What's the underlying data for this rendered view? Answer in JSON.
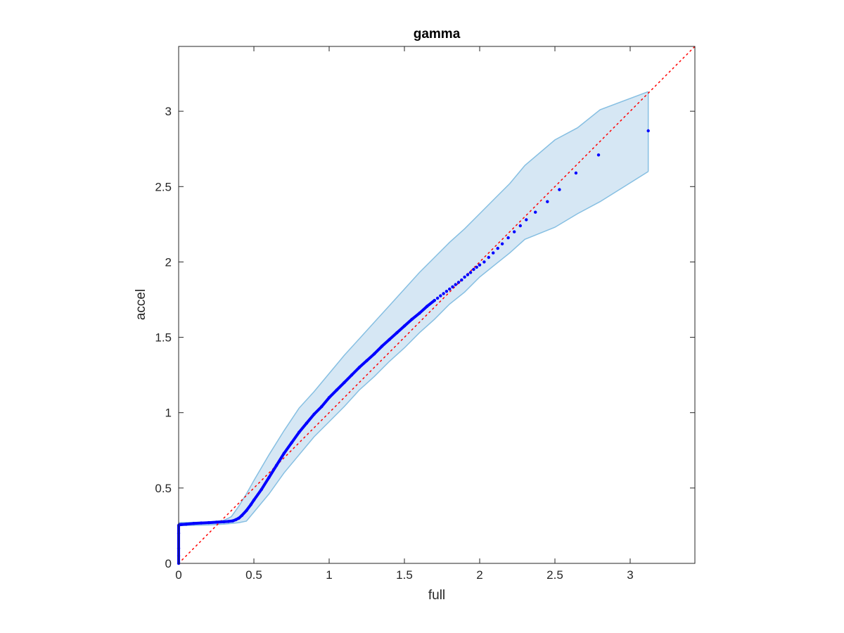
{
  "chart_data": {
    "type": "scatter",
    "title": "gamma",
    "xlabel": "full",
    "ylabel": "accel",
    "xlim": [
      0,
      3.43
    ],
    "ylim": [
      0,
      3.43
    ],
    "grid": false,
    "xticks": [
      0,
      0.5,
      1,
      1.5,
      2,
      2.5,
      3
    ],
    "yticks": [
      0,
      0.5,
      1,
      1.5,
      2,
      2.5,
      3
    ],
    "xtick_labels": [
      "0",
      "0.5",
      "1",
      "1.5",
      "2",
      "2.5",
      "3"
    ],
    "ytick_labels": [
      "0",
      "0.5",
      "1",
      "1.5",
      "2",
      "2.5",
      "3"
    ],
    "colors": {
      "points": "#0000ff",
      "band_fill": "#d6e7f4",
      "band_edge": "#86bfe2",
      "reference": "#ff0000",
      "axes": "#262626"
    },
    "reference_line": {
      "style": "dotted",
      "from": [
        0,
        0
      ],
      "to": [
        3.43,
        3.43
      ]
    },
    "confidence_band": {
      "x": [
        0,
        0.2,
        0.3,
        0.35,
        0.4,
        0.45,
        0.5,
        0.6,
        0.7,
        0.8,
        0.9,
        1.0,
        1.1,
        1.2,
        1.3,
        1.4,
        1.5,
        1.6,
        1.7,
        1.8,
        1.9,
        2.0,
        2.1,
        2.2,
        2.3,
        2.5,
        2.65,
        2.8,
        3.12
      ],
      "upper": [
        0.27,
        0.275,
        0.285,
        0.31,
        0.38,
        0.46,
        0.55,
        0.72,
        0.88,
        1.03,
        1.14,
        1.26,
        1.38,
        1.49,
        1.6,
        1.71,
        1.82,
        1.93,
        2.03,
        2.13,
        2.22,
        2.32,
        2.42,
        2.52,
        2.64,
        2.81,
        2.89,
        3.01,
        3.13
      ],
      "lower": [
        0.25,
        0.255,
        0.26,
        0.265,
        0.27,
        0.28,
        0.34,
        0.46,
        0.6,
        0.72,
        0.84,
        0.94,
        1.04,
        1.15,
        1.24,
        1.34,
        1.43,
        1.53,
        1.62,
        1.72,
        1.8,
        1.9,
        1.98,
        2.06,
        2.15,
        2.23,
        2.32,
        2.4,
        2.6
      ]
    },
    "series": [
      {
        "x": [
          0,
          0,
          0,
          0,
          0,
          0.002,
          0.005,
          0.01,
          0.02,
          0.05,
          0.1,
          0.15,
          0.2,
          0.25,
          0.3,
          0.33,
          0.36,
          0.38,
          0.4,
          0.42,
          0.45,
          0.48,
          0.5,
          0.55,
          0.6,
          0.65,
          0.7,
          0.75,
          0.8,
          0.85,
          0.9,
          0.95,
          1.0,
          1.05,
          1.1,
          1.15,
          1.2,
          1.25,
          1.3,
          1.35,
          1.4,
          1.45,
          1.5,
          1.55,
          1.6,
          1.65,
          1.7,
          1.72,
          1.74,
          1.76,
          1.78,
          1.8,
          1.82,
          1.84,
          1.86,
          1.88,
          1.9,
          1.92,
          1.94,
          1.96,
          1.98,
          2.0,
          2.03,
          2.06,
          2.09,
          2.12,
          2.15,
          2.19,
          2.23,
          2.27,
          2.31,
          2.37,
          2.45,
          2.53,
          2.64,
          2.79,
          3.12
        ],
        "y": [
          0,
          0.05,
          0.1,
          0.2,
          0.25,
          0.255,
          0.256,
          0.257,
          0.258,
          0.26,
          0.265,
          0.268,
          0.27,
          0.273,
          0.276,
          0.278,
          0.282,
          0.29,
          0.3,
          0.318,
          0.35,
          0.39,
          0.42,
          0.49,
          0.57,
          0.65,
          0.73,
          0.8,
          0.87,
          0.93,
          0.99,
          1.04,
          1.1,
          1.15,
          1.2,
          1.25,
          1.3,
          1.345,
          1.39,
          1.44,
          1.485,
          1.53,
          1.575,
          1.62,
          1.66,
          1.705,
          1.745,
          1.76,
          1.775,
          1.79,
          1.805,
          1.82,
          1.835,
          1.85,
          1.865,
          1.88,
          1.9,
          1.915,
          1.93,
          1.95,
          1.965,
          1.98,
          2.0,
          2.03,
          2.06,
          2.09,
          2.12,
          2.16,
          2.2,
          2.24,
          2.28,
          2.33,
          2.4,
          2.48,
          2.59,
          2.71,
          2.87
        ]
      }
    ]
  }
}
